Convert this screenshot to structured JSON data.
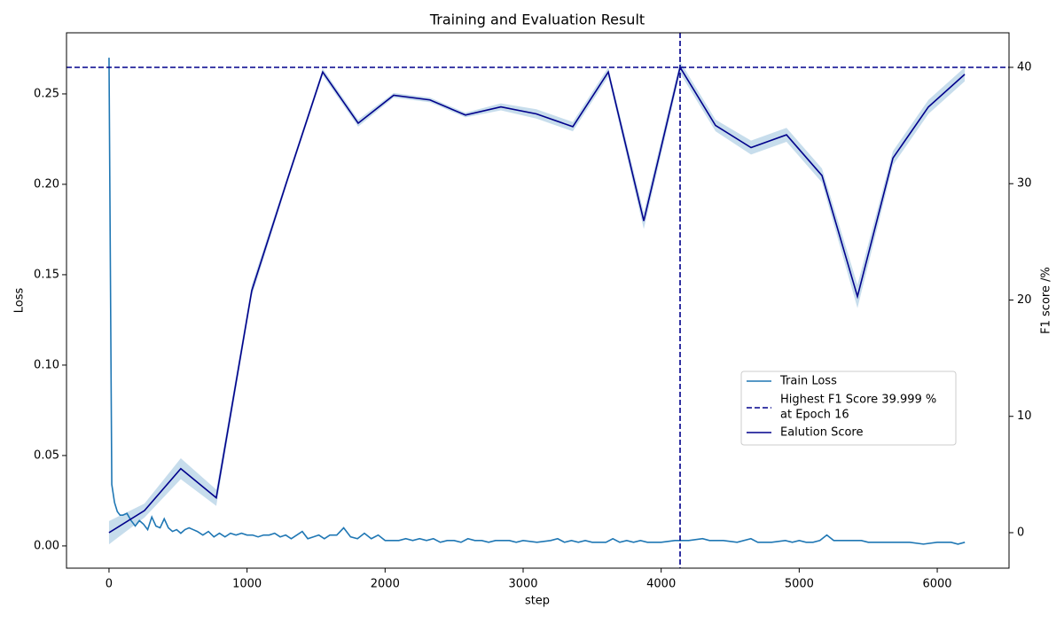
{
  "chart_data": {
    "type": "line",
    "title": "Training and Evaluation Result",
    "xlabel": "step",
    "ylabel": "Loss",
    "y2label": "F1 score /%",
    "xlim": [
      -308,
      6520
    ],
    "xticks": [
      0,
      1000,
      2000,
      3000,
      4000,
      5000,
      6000
    ],
    "ylim": [
      -0.0123,
      0.2838
    ],
    "yticks": [
      {
        "value": 0,
        "label": "0.00"
      },
      {
        "value": 0.05,
        "label": "0.05"
      },
      {
        "value": 0.1,
        "label": "0.10"
      },
      {
        "value": 0.15,
        "label": "0.15"
      },
      {
        "value": 0.2,
        "label": "0.20"
      },
      {
        "value": 0.25,
        "label": "0.25"
      }
    ],
    "y2lim": [
      -3.05,
      42.97
    ],
    "y2ticks": [
      0,
      10,
      20,
      30,
      40
    ],
    "series": [
      {
        "name": "Train Loss",
        "color": "#1f77b4",
        "axis": "y",
        "x": [
          0,
          20,
          40,
          60,
          80,
          100,
          130,
          160,
          190,
          220,
          250,
          280,
          310,
          340,
          370,
          400,
          430,
          460,
          490,
          520,
          550,
          580,
          610,
          640,
          680,
          720,
          760,
          800,
          840,
          880,
          920,
          960,
          1000,
          1040,
          1080,
          1120,
          1160,
          1200,
          1240,
          1280,
          1320,
          1360,
          1400,
          1440,
          1480,
          1520,
          1560,
          1600,
          1650,
          1700,
          1750,
          1800,
          1850,
          1900,
          1950,
          2000,
          2050,
          2100,
          2150,
          2200,
          2250,
          2300,
          2350,
          2400,
          2450,
          2500,
          2550,
          2600,
          2650,
          2700,
          2750,
          2800,
          2850,
          2900,
          2950,
          3000,
          3100,
          3200,
          3250,
          3300,
          3350,
          3400,
          3450,
          3500,
          3600,
          3650,
          3700,
          3750,
          3800,
          3850,
          3900,
          4000,
          4100,
          4200,
          4300,
          4350,
          4450,
          4550,
          4650,
          4700,
          4800,
          4900,
          4950,
          5000,
          5050,
          5100,
          5150,
          5200,
          5250,
          5300,
          5400,
          5450,
          5500,
          5600,
          5700,
          5800,
          5900,
          6000,
          6050,
          6100,
          6150,
          6200
        ],
        "values": [
          0.27,
          0.034,
          0.024,
          0.019,
          0.017,
          0.017,
          0.018,
          0.014,
          0.011,
          0.014,
          0.012,
          0.009,
          0.016,
          0.011,
          0.01,
          0.015,
          0.01,
          0.008,
          0.009,
          0.007,
          0.009,
          0.01,
          0.009,
          0.008,
          0.006,
          0.008,
          0.005,
          0.007,
          0.005,
          0.007,
          0.006,
          0.007,
          0.006,
          0.006,
          0.005,
          0.006,
          0.006,
          0.007,
          0.005,
          0.006,
          0.004,
          0.006,
          0.008,
          0.004,
          0.005,
          0.006,
          0.004,
          0.006,
          0.006,
          0.01,
          0.005,
          0.004,
          0.007,
          0.004,
          0.006,
          0.003,
          0.003,
          0.003,
          0.004,
          0.003,
          0.004,
          0.003,
          0.004,
          0.002,
          0.003,
          0.003,
          0.002,
          0.004,
          0.003,
          0.003,
          0.002,
          0.003,
          0.003,
          0.003,
          0.002,
          0.003,
          0.002,
          0.003,
          0.004,
          0.002,
          0.003,
          0.002,
          0.003,
          0.002,
          0.002,
          0.004,
          0.002,
          0.003,
          0.002,
          0.003,
          0.002,
          0.002,
          0.003,
          0.003,
          0.004,
          0.003,
          0.003,
          0.002,
          0.004,
          0.002,
          0.002,
          0.003,
          0.002,
          0.003,
          0.002,
          0.002,
          0.003,
          0.006,
          0.003,
          0.003,
          0.003,
          0.003,
          0.002,
          0.002,
          0.002,
          0.002,
          0.001,
          0.002,
          0.002,
          0.002,
          0.001,
          0.002
        ]
      },
      {
        "name": "Ealution Score",
        "color": "#00008b",
        "axis": "y2",
        "x": [
          0,
          257,
          520,
          777,
          1034,
          1291,
          1548,
          1805,
          2062,
          2325,
          2582,
          2839,
          3096,
          3360,
          3617,
          3874,
          4137,
          4394,
          4651,
          4908,
          5165,
          5422,
          5679,
          5936,
          6199
        ],
        "values": [
          0,
          1.9,
          5.5,
          3.0,
          20.8,
          30.3,
          39.6,
          35.2,
          37.6,
          37.2,
          35.9,
          36.6,
          36.0,
          34.9,
          39.6,
          26.8,
          40.0,
          35.0,
          33.1,
          34.2,
          30.7,
          20.3,
          32.2,
          36.6,
          39.4
        ],
        "errors": [
          1.0,
          0.6,
          0.9,
          0.7,
          0.5,
          0.3,
          0.3,
          0.3,
          0.2,
          0.2,
          0.2,
          0.3,
          0.4,
          0.4,
          0.4,
          0.7,
          0.5,
          0.5,
          0.6,
          0.6,
          0.6,
          1.0,
          0.6,
          0.6,
          0.6
        ]
      }
    ],
    "reference": {
      "value": 39.999,
      "x": 4137,
      "color": "#00008b",
      "label_lines": [
        "Highest F1 Score 39.999 %",
        "at Epoch 16"
      ]
    }
  }
}
